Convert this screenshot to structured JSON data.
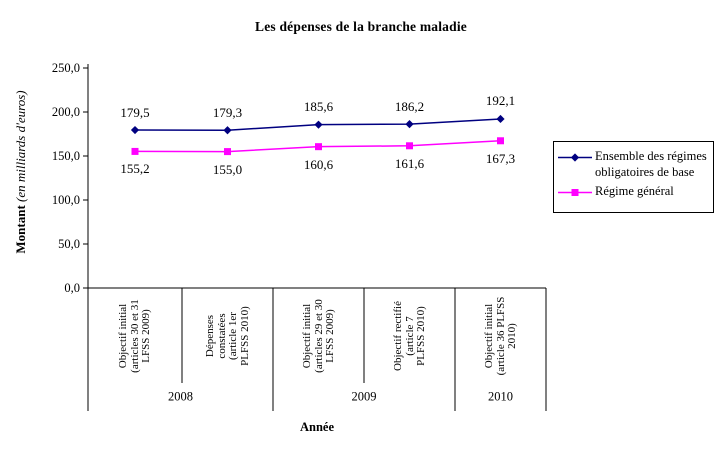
{
  "title": "Les dépenses de la branche maladie",
  "y_axis": {
    "title_bold": "Montant",
    "title_italic": "(en milliards d'euros)",
    "tick_values": [
      0,
      50,
      100,
      150,
      200,
      250
    ],
    "tick_labels": [
      "0,0",
      "50,0",
      "100,0",
      "150,0",
      "200,0",
      "250,0"
    ]
  },
  "x_axis": {
    "title": "Année",
    "year_groups": [
      {
        "label": "2008",
        "span": 2
      },
      {
        "label": "2009",
        "span": 2
      },
      {
        "label": "2010",
        "span": 1
      }
    ],
    "category_lines": [
      [
        "Objectif initial",
        "(articles 30 et 31",
        "LFSS 2009)"
      ],
      [
        "Dépenses",
        "constatées",
        "(article 1er",
        "PLFSS 2010)"
      ],
      [
        "Objectif initial",
        "(articles 29 et 30",
        "LFSS 2009)"
      ],
      [
        "Objectif rectifié",
        "(article 7",
        "PLFSS 2010)"
      ],
      [
        "Objectif initial",
        "(article 36 PLFSS",
        "2010)"
      ]
    ]
  },
  "chart_data": {
    "type": "line",
    "title": "Les dépenses de la branche maladie",
    "xlabel": "Année",
    "ylabel": "Montant (en milliards d'euros)",
    "ylim": [
      0,
      250
    ],
    "grid": false,
    "legend_position": "right",
    "categories": [
      "Objectif initial (articles 30 et 31 LFSS 2009)",
      "Dépenses constatées (article 1er PLFSS 2010)",
      "Objectif initial (articles 29 et 30 LFSS 2009)",
      "Objectif rectifié (article 7 PLFSS 2010)",
      "Objectif initial (article 36 PLFSS 2010)"
    ],
    "category_years": [
      "2008",
      "2008",
      "2009",
      "2009",
      "2010"
    ],
    "series": [
      {
        "name": "Ensemble des régimes obligatoires de base",
        "values": [
          179.5,
          179.3,
          185.6,
          186.2,
          192.1
        ],
        "value_labels": [
          "179,5",
          "179,3",
          "185,6",
          "186,2",
          "192,1"
        ],
        "color": "#000080",
        "marker": "diamond"
      },
      {
        "name": "Régime général",
        "values": [
          155.2,
          155.0,
          160.6,
          161.6,
          167.3
        ],
        "value_labels": [
          "155,2",
          "155,0",
          "160,6",
          "161,6",
          "167,3"
        ],
        "color": "#FF00FF",
        "marker": "square"
      }
    ]
  }
}
